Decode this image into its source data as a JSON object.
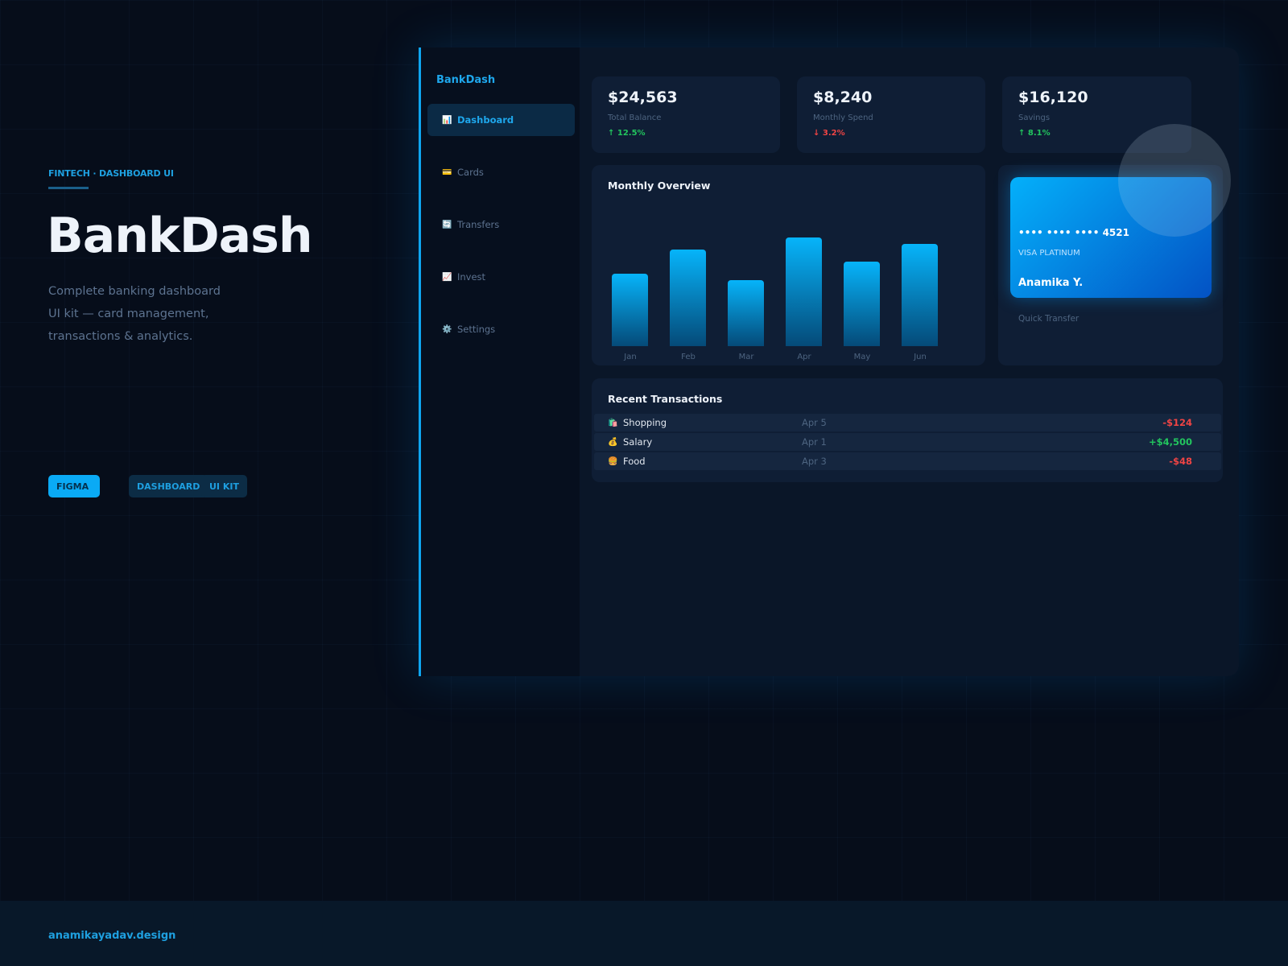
{
  "intro": {
    "eyebrow": "FINTECH · DASHBOARD UI",
    "title": "BankDash",
    "description": "Complete banking dashboard UI kit — card management, transactions & analytics.",
    "tags": [
      "FIGMA",
      "DASHBOARD",
      "UI KIT"
    ]
  },
  "footer": {
    "site": "anamikayadav.design"
  },
  "app": {
    "logo": "BankDash",
    "nav": [
      {
        "icon": "📊",
        "label": "Dashboard",
        "active": true
      },
      {
        "icon": "💳",
        "label": "Cards"
      },
      {
        "icon": "🔄",
        "label": "Transfers"
      },
      {
        "icon": "📈",
        "label": "Invest"
      },
      {
        "icon": "⚙️",
        "label": "Settings"
      }
    ],
    "stats": [
      {
        "value": "$24,563",
        "label": "Total Balance",
        "change": "↑ 12.5%",
        "trend": "up"
      },
      {
        "value": "$8,240",
        "label": "Monthly Spend",
        "change": "↓ 3.2%",
        "trend": "down"
      },
      {
        "value": "$16,120",
        "label": "Savings",
        "change": "↑ 8.1%",
        "trend": "up"
      }
    ],
    "card": {
      "number": "•••• •••• •••• 4521",
      "type": "VISA PLATINUM",
      "holder": "Anamika Y.",
      "quick_transfer": "Quick Transfer"
    },
    "transactions": {
      "title": "Recent Transactions",
      "rows": [
        {
          "icon": "🛍️",
          "name": "Shopping",
          "date": "Apr 5",
          "amount": "-$124",
          "trend": "down"
        },
        {
          "icon": "💰",
          "name": "Salary",
          "date": "Apr 1",
          "amount": "+$4,500",
          "trend": "up"
        },
        {
          "icon": "🍔",
          "name": "Food",
          "date": "Apr 3",
          "amount": "-$48",
          "trend": "down"
        }
      ]
    }
  },
  "chart_data": {
    "type": "bar",
    "title": "Monthly Overview",
    "categories": [
      "Jan",
      "Feb",
      "Mar",
      "Apr",
      "May",
      "Jun"
    ],
    "values": [
      60,
      80,
      55,
      90,
      70,
      85
    ],
    "ylim": [
      0,
      100
    ],
    "xlabel": "",
    "ylabel": ""
  },
  "colors": {
    "accent": "#0ea5f0",
    "up": "#22c55e",
    "down": "#ef4444"
  }
}
